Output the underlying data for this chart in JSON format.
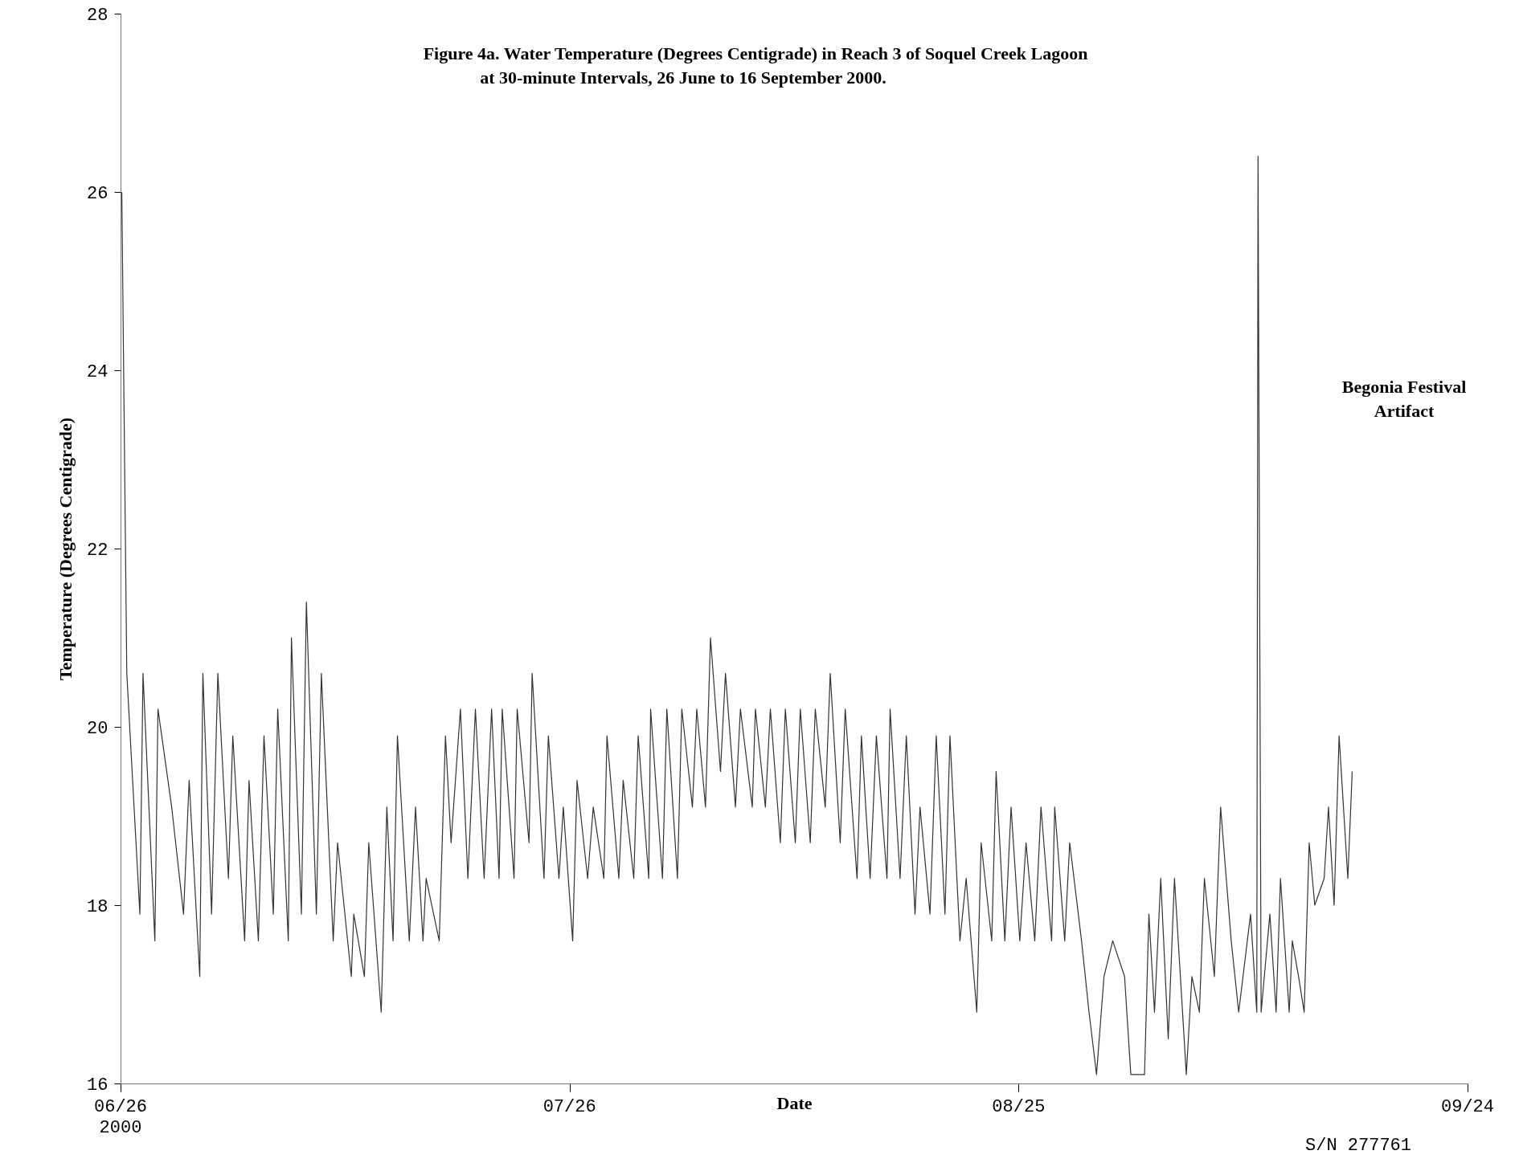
{
  "chart_data": {
    "type": "line",
    "title": "Figure 4a. Water Temperature (Degrees Centigrade) in Reach 3 of Soquel Creek Lagoon",
    "subtitle": "at 30-minute Intervals, 26 June to 16 September 2000.",
    "xlabel": "Date",
    "ylabel": "Temperature (Degrees Centigrade)",
    "annotations": [
      "Begonia Festival\nArtifact",
      "S/N 277761"
    ],
    "x": [
      "2000-06-26T02:00",
      "2000-06-26T10:00",
      "2000-06-27T07:00",
      "2000-06-27T12:00",
      "2000-06-28T07:00",
      "2000-06-28T12:00",
      "2000-06-29T10:00",
      "2000-06-30T05:00",
      "2000-06-30T14:00",
      "2000-07-01T07:00",
      "2000-07-01T12:00",
      "2000-07-02T02:00",
      "2000-07-02T12:00",
      "2000-07-03T05:00",
      "2000-07-03T12:00",
      "2000-07-04T07:00",
      "2000-07-04T14:00",
      "2000-07-05T05:00",
      "2000-07-05T14:00",
      "2000-07-06T05:00",
      "2000-07-06T12:00",
      "2000-07-07T05:00",
      "2000-07-07T10:00",
      "2000-07-08T02:00",
      "2000-07-08T10:00",
      "2000-07-09T02:00",
      "2000-07-09T10:00",
      "2000-07-10T05:00",
      "2000-07-10T12:00",
      "2000-07-11T10:00",
      "2000-07-11T14:00",
      "2000-07-12T07:00",
      "2000-07-12T14:00",
      "2000-07-13T10:00",
      "2000-07-13T19:00",
      "2000-07-14T05:00",
      "2000-07-14T12:00",
      "2000-07-15T07:00",
      "2000-07-15T17:00",
      "2000-07-16T05:00",
      "2000-07-16T10:00",
      "2000-07-17T07:00",
      "2000-07-17T17:00",
      "2000-07-18T02:00",
      "2000-07-18T17:00",
      "2000-07-19T05:00",
      "2000-07-19T17:00",
      "2000-07-20T07:00",
      "2000-07-20T19:00",
      "2000-07-21T07:00",
      "2000-07-21T12:00",
      "2000-07-22T07:00",
      "2000-07-22T12:00",
      "2000-07-23T07:00",
      "2000-07-23T12:00",
      "2000-07-24T07:00",
      "2000-07-24T14:00",
      "2000-07-25T07:00",
      "2000-07-25T14:00",
      "2000-07-26T05:00",
      "2000-07-26T12:00",
      "2000-07-27T05:00",
      "2000-07-27T14:00",
      "2000-07-28T07:00",
      "2000-07-28T12:00",
      "2000-07-29T07:00",
      "2000-07-29T14:00",
      "2000-07-30T07:00",
      "2000-07-30T14:00",
      "2000-07-31T07:00",
      "2000-07-31T10:00",
      "2000-08-01T05:00",
      "2000-08-01T12:00",
      "2000-08-02T05:00",
      "2000-08-02T12:00",
      "2000-08-03T05:00",
      "2000-08-03T12:00",
      "2000-08-04T02:00",
      "2000-08-04T10:00",
      "2000-08-05T02:00",
      "2000-08-05T10:00",
      "2000-08-06T02:00",
      "2000-08-06T10:00",
      "2000-08-07T05:00",
      "2000-08-07T10:00",
      "2000-08-08T02:00",
      "2000-08-08T10:00",
      "2000-08-09T02:00",
      "2000-08-09T10:00",
      "2000-08-10T02:00",
      "2000-08-10T10:00",
      "2000-08-11T02:00",
      "2000-08-11T10:00",
      "2000-08-12T02:00",
      "2000-08-12T10:00",
      "2000-08-13T02:00",
      "2000-08-13T10:00",
      "2000-08-14T05:00",
      "2000-08-14T12:00",
      "2000-08-15T02:00",
      "2000-08-15T12:00",
      "2000-08-16T05:00",
      "2000-08-16T10:00",
      "2000-08-17T02:00",
      "2000-08-17T12:00",
      "2000-08-18T02:00",
      "2000-08-18T10:00",
      "2000-08-19T02:00",
      "2000-08-19T12:00",
      "2000-08-20T02:00",
      "2000-08-20T10:00",
      "2000-08-21T02:00",
      "2000-08-21T12:00",
      "2000-08-22T05:00",
      "2000-08-22T12:00",
      "2000-08-23T05:00",
      "2000-08-23T12:00",
      "2000-08-24T02:00",
      "2000-08-24T12:00",
      "2000-08-25T02:00",
      "2000-08-25T12:00",
      "2000-08-26T02:00",
      "2000-08-26T12:00",
      "2000-08-27T05:00",
      "2000-08-27T10:00",
      "2000-08-28T02:00",
      "2000-08-28T10:00",
      "2000-08-29T05:00",
      "2000-08-29T17:00",
      "2000-08-30T05:00",
      "2000-08-30T17:00",
      "2000-08-31T07:00",
      "2000-09-01T02:00",
      "2000-09-01T12:00",
      "2000-09-02T10:00",
      "2000-09-02T17:00",
      "2000-09-03T02:00",
      "2000-09-03T12:00",
      "2000-09-04T00:00",
      "2000-09-04T10:00",
      "2000-09-05T05:00",
      "2000-09-05T14:00",
      "2000-09-06T02:00",
      "2000-09-06T10:00",
      "2000-09-07T02:00",
      "2000-09-07T12:00",
      "2000-09-08T05:00",
      "2000-09-08T17:00",
      "2000-09-09T12:00",
      "2000-09-09T22:00",
      "2000-09-10T00:00",
      "2000-09-10T05:00",
      "2000-09-10T19:00",
      "2000-09-11T05:00",
      "2000-09-11T12:00",
      "2000-09-12T02:00",
      "2000-09-12T07:00",
      "2000-09-12T17:00",
      "2000-09-13T02:00",
      "2000-09-13T10:00",
      "2000-09-13T19:00",
      "2000-09-14T10:00",
      "2000-09-14T17:00",
      "2000-09-15T02:00",
      "2000-09-15T10:00",
      "2000-09-16T00:00",
      "2000-09-16T07:00"
    ],
    "values": [
      26.0,
      20.6,
      17.9,
      20.6,
      17.6,
      20.2,
      19.1,
      17.9,
      19.4,
      17.2,
      20.6,
      17.9,
      20.6,
      18.3,
      19.9,
      17.6,
      19.4,
      17.6,
      19.9,
      17.9,
      20.2,
      17.6,
      21.0,
      17.9,
      21.4,
      17.9,
      20.6,
      17.6,
      18.7,
      17.2,
      17.9,
      17.2,
      18.7,
      16.8,
      19.1,
      17.6,
      19.9,
      17.6,
      19.1,
      17.6,
      18.3,
      17.6,
      19.9,
      18.7,
      20.2,
      18.3,
      20.2,
      18.3,
      20.2,
      18.3,
      20.2,
      18.3,
      20.2,
      18.7,
      20.6,
      18.3,
      19.9,
      18.3,
      19.1,
      17.6,
      19.4,
      18.3,
      19.1,
      18.3,
      19.9,
      18.3,
      19.4,
      18.3,
      19.9,
      18.3,
      20.2,
      18.3,
      20.2,
      18.3,
      20.2,
      19.1,
      20.2,
      19.1,
      21.0,
      19.5,
      20.6,
      19.1,
      20.2,
      19.1,
      20.2,
      19.1,
      20.2,
      18.7,
      20.2,
      18.7,
      20.2,
      18.7,
      20.2,
      19.1,
      20.6,
      18.7,
      20.2,
      18.3,
      19.9,
      18.3,
      19.9,
      18.3,
      20.2,
      18.3,
      19.9,
      17.9,
      19.1,
      17.9,
      19.9,
      17.9,
      19.9,
      17.6,
      18.3,
      16.8,
      18.7,
      17.6,
      19.5,
      17.6,
      19.1,
      17.6,
      18.7,
      17.6,
      19.1,
      17.6,
      19.1,
      17.6,
      18.7,
      17.6,
      16.8,
      16.1,
      17.2,
      17.6,
      17.2,
      16.1,
      16.1,
      17.9,
      16.8,
      18.3,
      16.5,
      18.3,
      16.1,
      17.2,
      16.8,
      18.3,
      17.2,
      19.1,
      17.6,
      16.8,
      17.9,
      16.8,
      26.4,
      16.8,
      17.9,
      16.8,
      18.3,
      16.8,
      17.6,
      17.2,
      16.8,
      18.7,
      18.0,
      18.3,
      19.1,
      18.0,
      19.9,
      18.3,
      19.5
    ],
    "color": "#333333",
    "xlim": [
      "2000-06-26",
      "2000-09-24"
    ],
    "xticks": [
      {
        "value": "2000-06-26",
        "label": "06/26\n2000"
      },
      {
        "value": "2000-07-26",
        "label": "07/26"
      },
      {
        "value": "2000-08-25",
        "label": "08/25"
      },
      {
        "value": "2000-09-24",
        "label": "09/24"
      }
    ],
    "ylim": [
      16,
      28
    ],
    "yticks": [
      16,
      18,
      20,
      22,
      24,
      26,
      28
    ],
    "grid": false,
    "marker": "none",
    "line_style": "solid"
  }
}
